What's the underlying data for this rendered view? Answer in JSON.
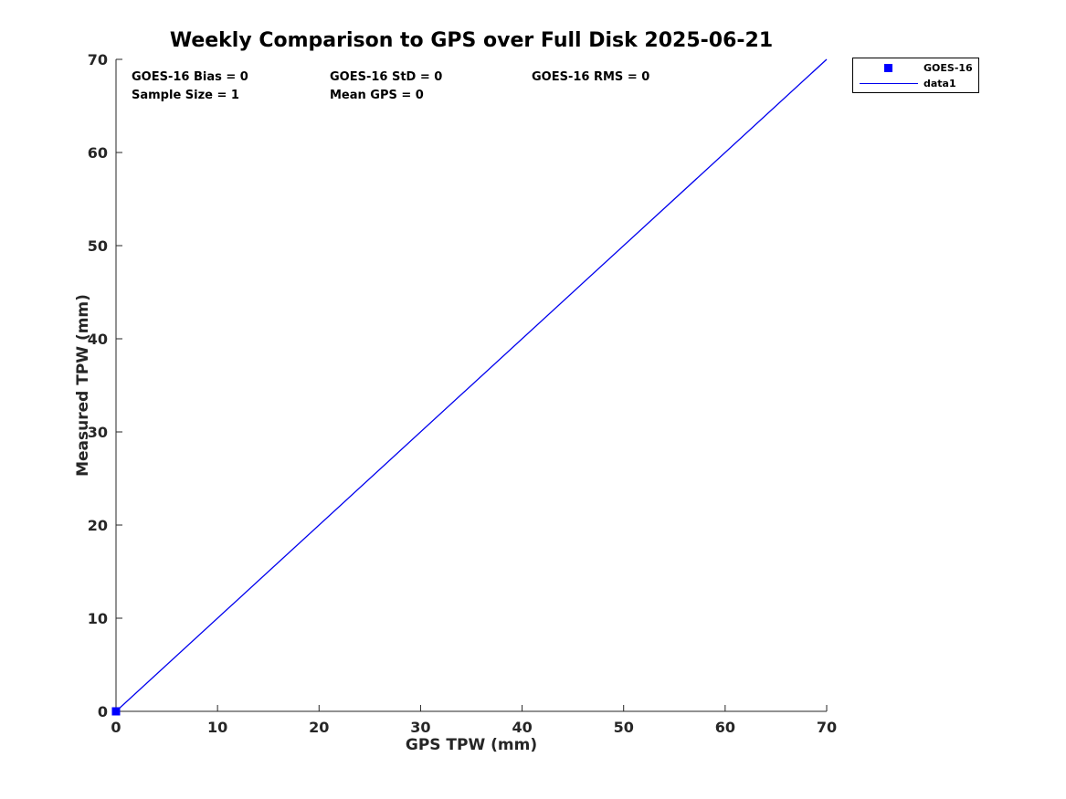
{
  "figure": {
    "title": "Weekly Comparison to GPS over Full Disk 2025-06-21",
    "background": "#ffffff"
  },
  "chart_data": {
    "type": "scatter",
    "title": "Weekly Comparison to GPS over Full Disk 2025-06-21",
    "xlabel": "GPS TPW (mm)",
    "ylabel": "Measured TPW (mm)",
    "xlim": [
      0,
      70
    ],
    "ylim": [
      0,
      70
    ],
    "xticks": [
      0,
      10,
      20,
      30,
      40,
      50,
      60,
      70
    ],
    "yticks": [
      0,
      10,
      20,
      30,
      40,
      50,
      60,
      70
    ],
    "grid": false,
    "box": false,
    "tick_direction": "in",
    "legend_position": "outside-top-right",
    "series": [
      {
        "name": "GOES-16",
        "type": "scatter",
        "marker": "filled-square",
        "color": "#0000ff",
        "x": [
          0
        ],
        "y": [
          0
        ]
      },
      {
        "name": "data1",
        "type": "line",
        "color": "#0000ee",
        "x": [
          0,
          70
        ],
        "y": [
          0,
          70
        ]
      }
    ],
    "annotations": [
      {
        "id": "bias",
        "text": "GOES-16 Bias = 0"
      },
      {
        "id": "std",
        "text": "GOES-16 StD = 0"
      },
      {
        "id": "rms",
        "text": "GOES-16 RMS = 0"
      },
      {
        "id": "sample",
        "text": "Sample Size = 1"
      },
      {
        "id": "mean",
        "text": "Mean GPS = 0"
      }
    ]
  },
  "legend": {
    "items": [
      {
        "label": "GOES-16",
        "swatch": "square-marker",
        "color": "#0000ff"
      },
      {
        "label": "data1",
        "swatch": "line",
        "color": "#0000ee"
      }
    ]
  },
  "colors": {
    "marker_blue": "#0000ff",
    "line_blue": "#0000ee",
    "axis_gray": "#262626",
    "text_black": "#000000",
    "background": "#ffffff"
  }
}
